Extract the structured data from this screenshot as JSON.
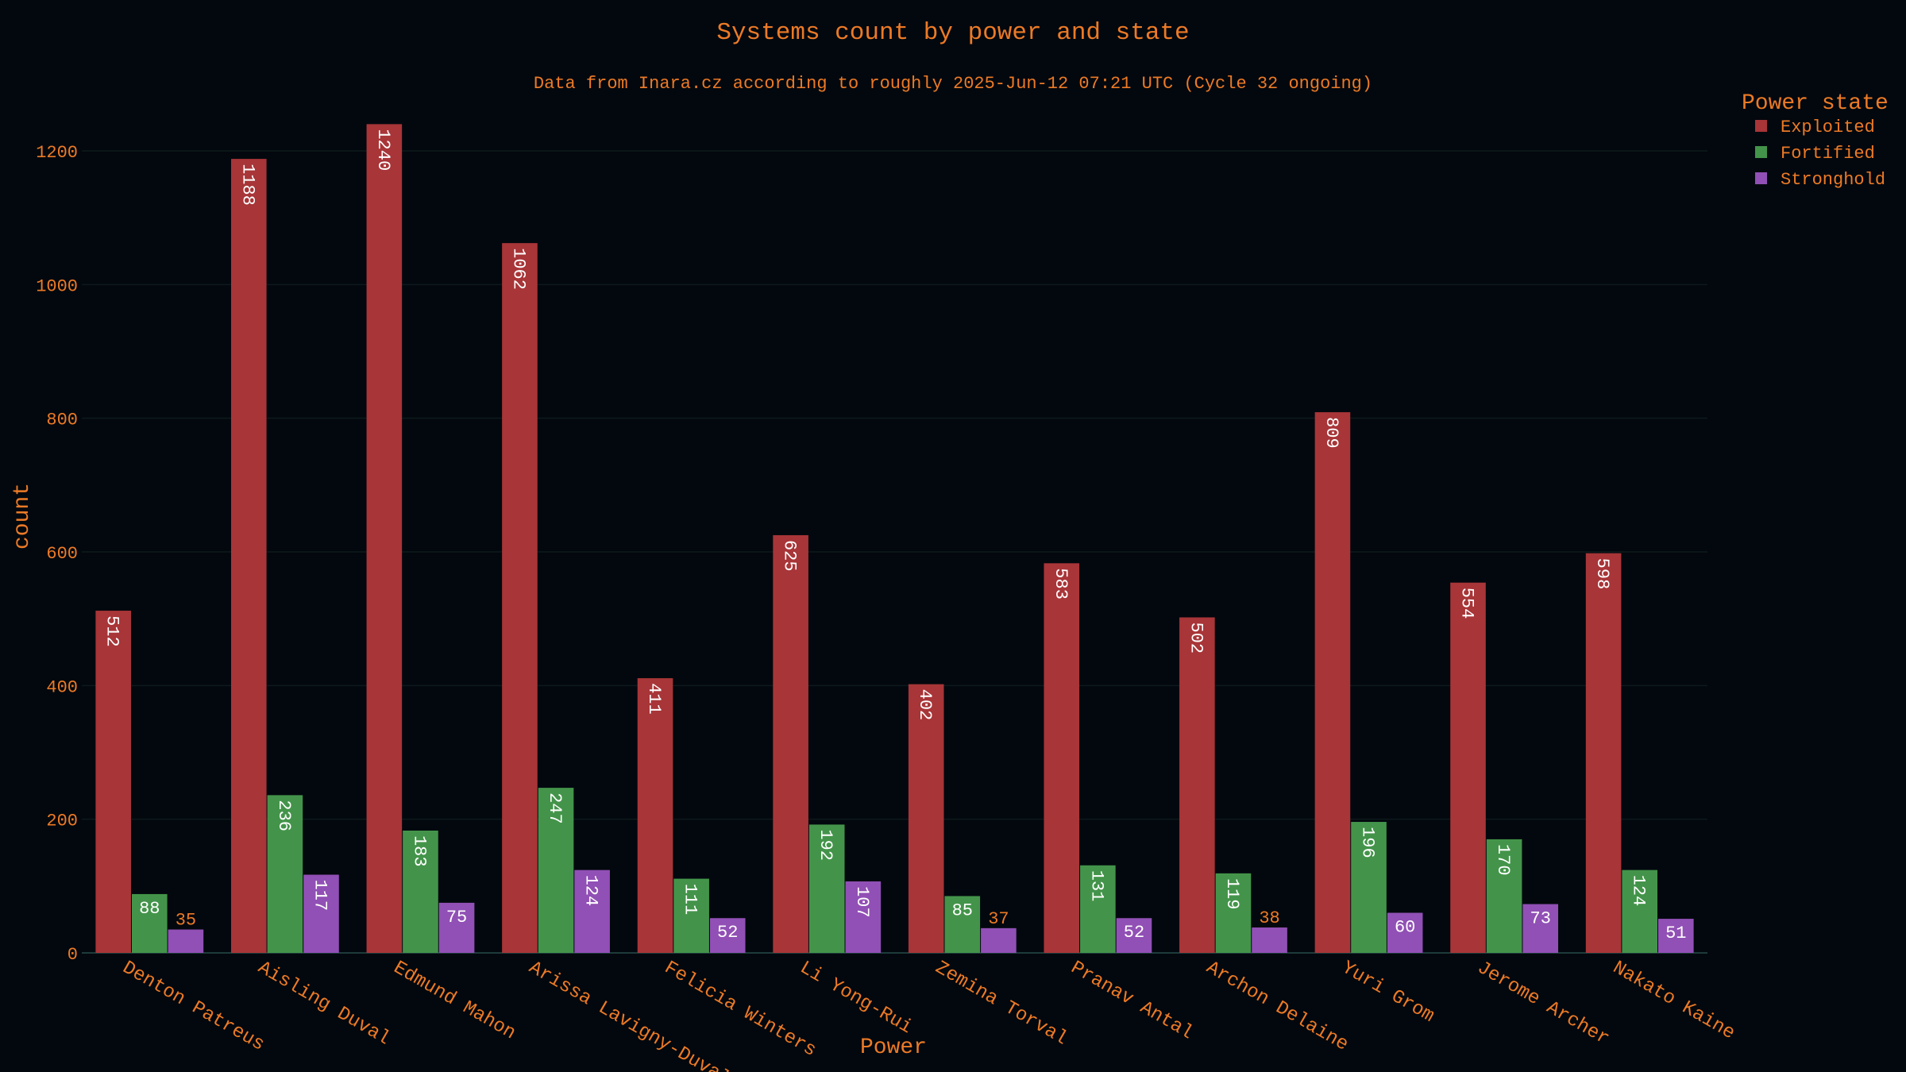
{
  "chart_data": {
    "type": "bar",
    "title": "Systems count by power and state",
    "subtitle": "Data from Inara.cz according to roughly 2025-Jun-12 07:21 UTC (Cycle 32 ongoing)",
    "xlabel": "Power",
    "ylabel": "count",
    "ylim": [
      0,
      1250
    ],
    "yticks": [
      0,
      200,
      400,
      600,
      800,
      1000,
      1200
    ],
    "legend_title": "Power state",
    "legend_position": "top-right",
    "categories": [
      "Denton Patreus",
      "Aisling Duval",
      "Edmund Mahon",
      "Arissa Lavigny-Duval",
      "Felicia Winters",
      "Li Yong-Rui",
      "Zemina Torval",
      "Pranav Antal",
      "Archon Delaine",
      "Yuri Grom",
      "Jerome Archer",
      "Nakato Kaine"
    ],
    "series": [
      {
        "name": "Exploited",
        "color": "#a83538",
        "values": [
          512,
          1188,
          1240,
          1062,
          411,
          625,
          402,
          583,
          502,
          809,
          554,
          598
        ]
      },
      {
        "name": "Fortified",
        "color": "#43944a",
        "values": [
          88,
          236,
          183,
          247,
          111,
          192,
          85,
          131,
          119,
          196,
          170,
          124
        ]
      },
      {
        "name": "Stronghold",
        "color": "#9150b5",
        "values": [
          35,
          117,
          75,
          124,
          52,
          107,
          37,
          52,
          38,
          60,
          73,
          51
        ]
      }
    ]
  }
}
